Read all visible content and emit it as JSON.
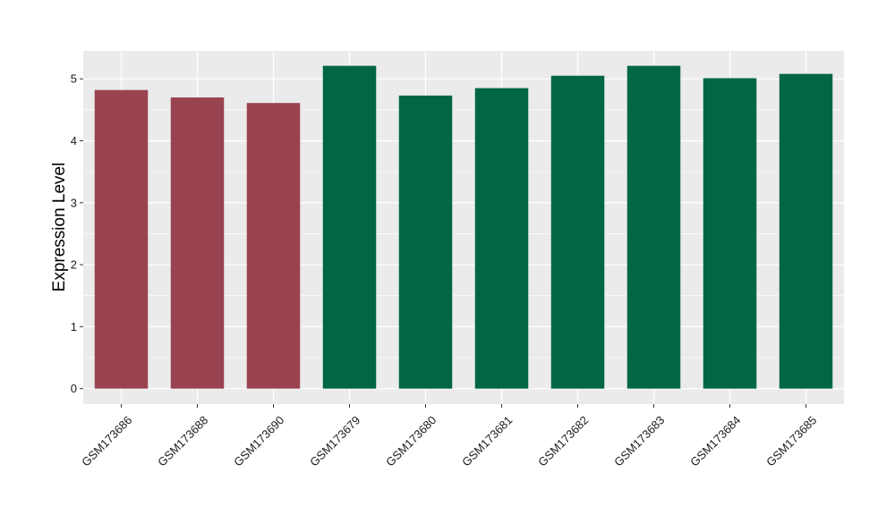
{
  "colors": {
    "panel_background": "#ebebeb",
    "gridline_major": "#ffffff",
    "gridline_minor": "#f5f5f5",
    "tick_color": "#333333"
  },
  "chart_data": {
    "type": "bar",
    "title": "",
    "xlabel": "",
    "ylabel": "Expression Level",
    "ylim": [
      -0.25,
      5.45
    ],
    "yticks": [
      0,
      1,
      2,
      3,
      4,
      5
    ],
    "grid": true,
    "legend": "none",
    "categories": [
      "GSM173686",
      "GSM173688",
      "GSM173690",
      "GSM173679",
      "GSM173680",
      "GSM173681",
      "GSM173682",
      "GSM173683",
      "GSM173684",
      "GSM173685"
    ],
    "values": [
      4.82,
      4.7,
      4.61,
      5.21,
      4.73,
      4.85,
      5.05,
      5.21,
      5.01,
      5.08
    ],
    "bar_colors": [
      "#9a4350",
      "#9a4350",
      "#9a4350",
      "#006644",
      "#006644",
      "#006644",
      "#006644",
      "#006644",
      "#006644",
      "#006644"
    ]
  }
}
